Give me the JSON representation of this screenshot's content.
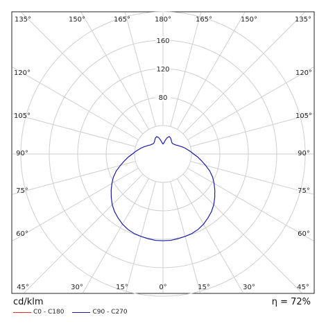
{
  "chart_data": {
    "type": "polar",
    "unit_label": "cd/klm",
    "efficiency_label": "η = 72%",
    "radial_ticks": [
      40,
      80,
      120,
      160,
      200
    ],
    "radial_tick_labels": [
      "80",
      "120",
      "160"
    ],
    "rmax": 200,
    "grid": true,
    "angle_labels_top": [
      "135°",
      "150°",
      "165°",
      "180°",
      "165°",
      "150°",
      "135°"
    ],
    "angle_labels_bottom": [
      "45°",
      "30°",
      "15°",
      "0°",
      "15°",
      "30°",
      "45°"
    ],
    "angle_labels_side": [
      "120°",
      "105°",
      "90°",
      "75°",
      "60°"
    ],
    "series": [
      {
        "name": "C0 - C180",
        "color": "#e03030",
        "angles": [
          0,
          10,
          20,
          30,
          40,
          50,
          60,
          70,
          80,
          85,
          90,
          95,
          100,
          105,
          110,
          120,
          130,
          140,
          150,
          160,
          170,
          180
        ],
        "values": [
          122,
          121,
          118,
          112,
          104,
          95,
          84,
          72,
          57,
          50,
          42,
          0,
          0,
          0,
          0,
          0,
          0,
          0,
          0,
          0,
          0,
          0
        ]
      },
      {
        "name": "C90 - C270",
        "color": "#1a1aa6",
        "angles": [
          0,
          5,
          10,
          15,
          20,
          25,
          30,
          35,
          40,
          45,
          50,
          55,
          60,
          65,
          70,
          75,
          80,
          85,
          90,
          95,
          100,
          105,
          110,
          115,
          120,
          125,
          130,
          135,
          140,
          145,
          150,
          155,
          160,
          165,
          170,
          175,
          180
        ],
        "values": [
          122,
          122,
          121,
          120,
          119,
          117,
          114,
          110,
          106,
          101,
          95,
          89,
          83,
          77,
          70,
          62,
          55,
          49,
          43,
          39,
          35,
          32,
          29,
          26,
          24,
          22,
          21,
          20,
          20,
          21,
          23,
          25,
          26,
          24,
          20,
          16,
          14
        ]
      }
    ]
  }
}
